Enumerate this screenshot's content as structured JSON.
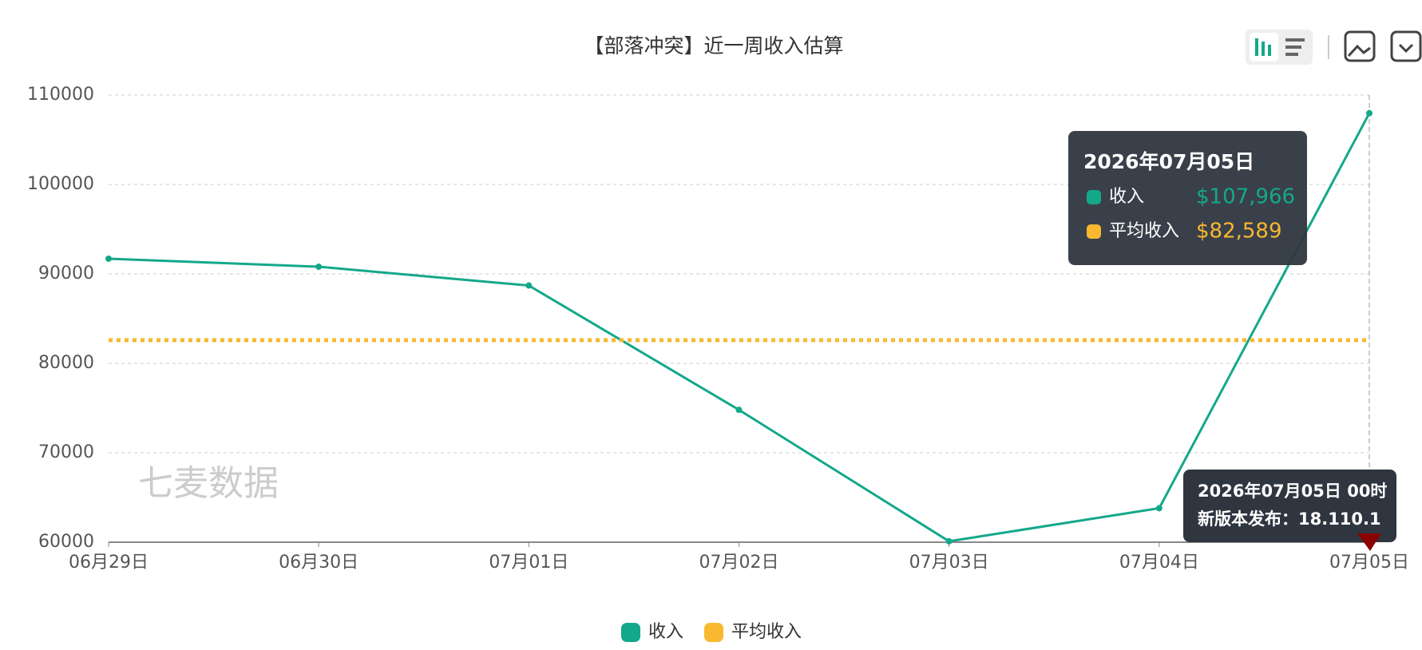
{
  "chart_data": {
    "type": "line",
    "title": "【部落冲突】近一周收入估算",
    "categories": [
      "06月29日",
      "06月30日",
      "07月01日",
      "07月02日",
      "07月03日",
      "07月04日",
      "07月05日"
    ],
    "series": [
      {
        "name": "收入",
        "color": "#14a88a",
        "values": [
          91700,
          90800,
          88700,
          74800,
          60100,
          63800,
          107966
        ]
      },
      {
        "name": "平均收入",
        "color": "#f8b830",
        "values": [
          82589,
          82589,
          82589,
          82589,
          82589,
          82589,
          82589
        ]
      }
    ],
    "ylim": [
      60000,
      110000
    ],
    "yticks": [
      60000,
      70000,
      80000,
      90000,
      100000,
      110000
    ],
    "grid": true,
    "legend": "bottom",
    "watermark": "七麦数据",
    "tooltip": {
      "title": "2026年07月05日",
      "value_labels": [
        "$107,966",
        "$82,589"
      ]
    },
    "annotation": {
      "lines": [
        "2026年07月05日 00时",
        "新版本发布：18.110.1"
      ]
    }
  }
}
